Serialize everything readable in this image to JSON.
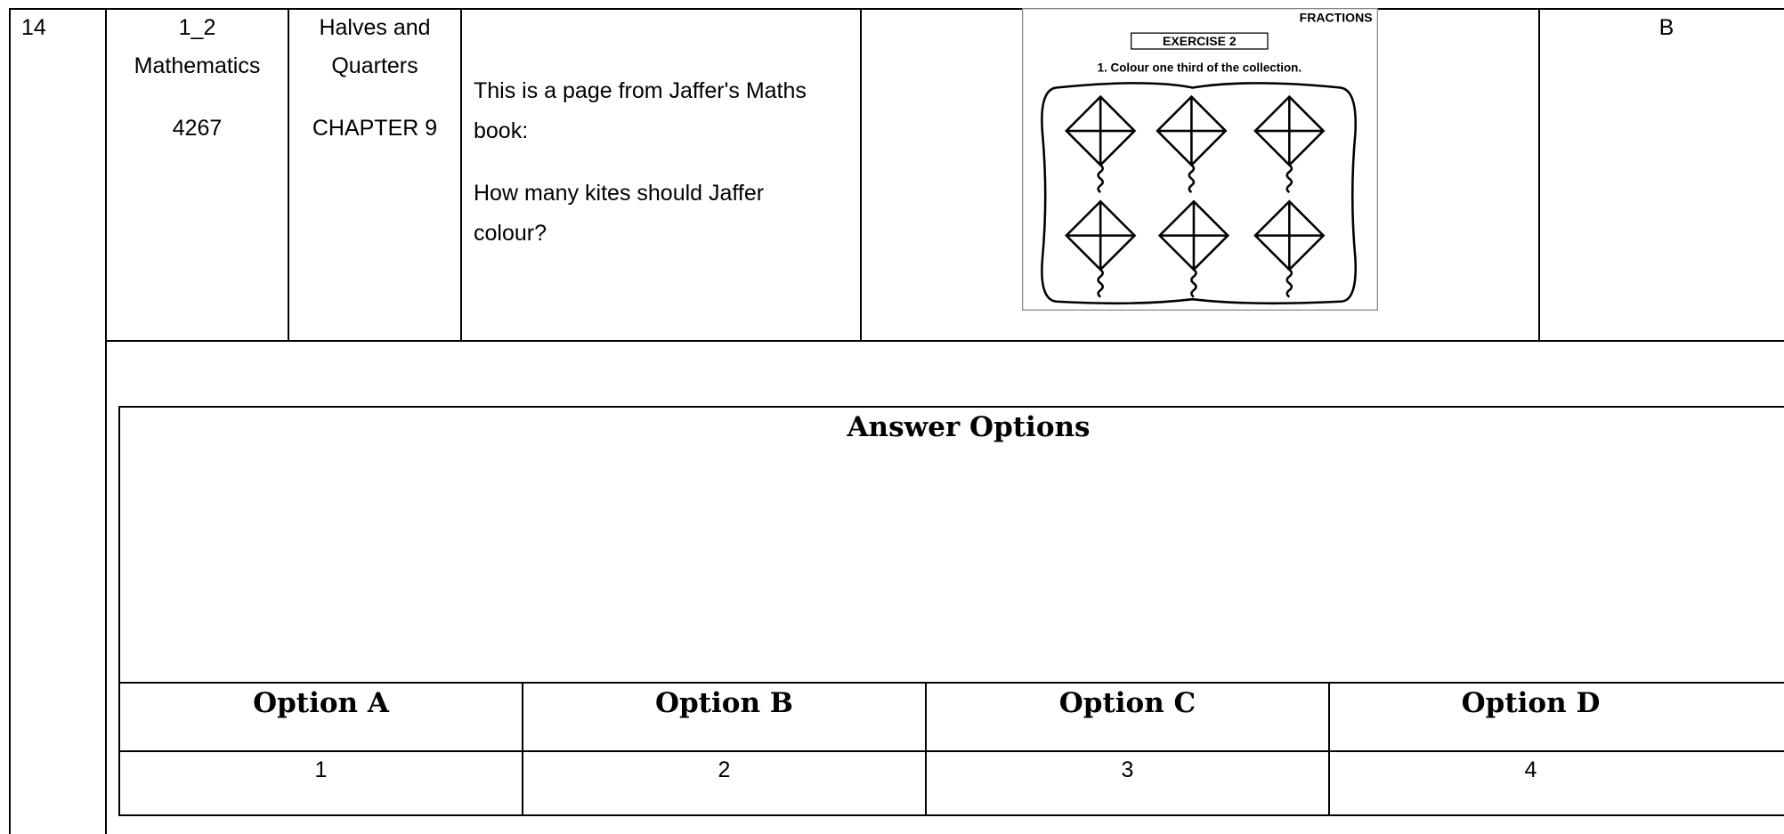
{
  "row": {
    "number": "14",
    "subject": [
      "1_2",
      "Mathematics",
      "4267"
    ],
    "chapter": [
      "Halves and",
      "Quarters",
      "CHAPTER 9"
    ],
    "question": [
      "This is a page from Jaffer's Maths book:",
      "How many kites should Jaffer colour?"
    ],
    "image": {
      "heading": "FRACTIONS",
      "exercise": "EXERCISE 2",
      "instruction": "1. Colour one third of the collection."
    },
    "answer": "B"
  },
  "answer_options": {
    "title": "Answer Options",
    "headers": [
      "Option A",
      "Option B",
      "Option C",
      "Option D"
    ],
    "values": [
      "1",
      "2",
      "3",
      "4"
    ]
  }
}
